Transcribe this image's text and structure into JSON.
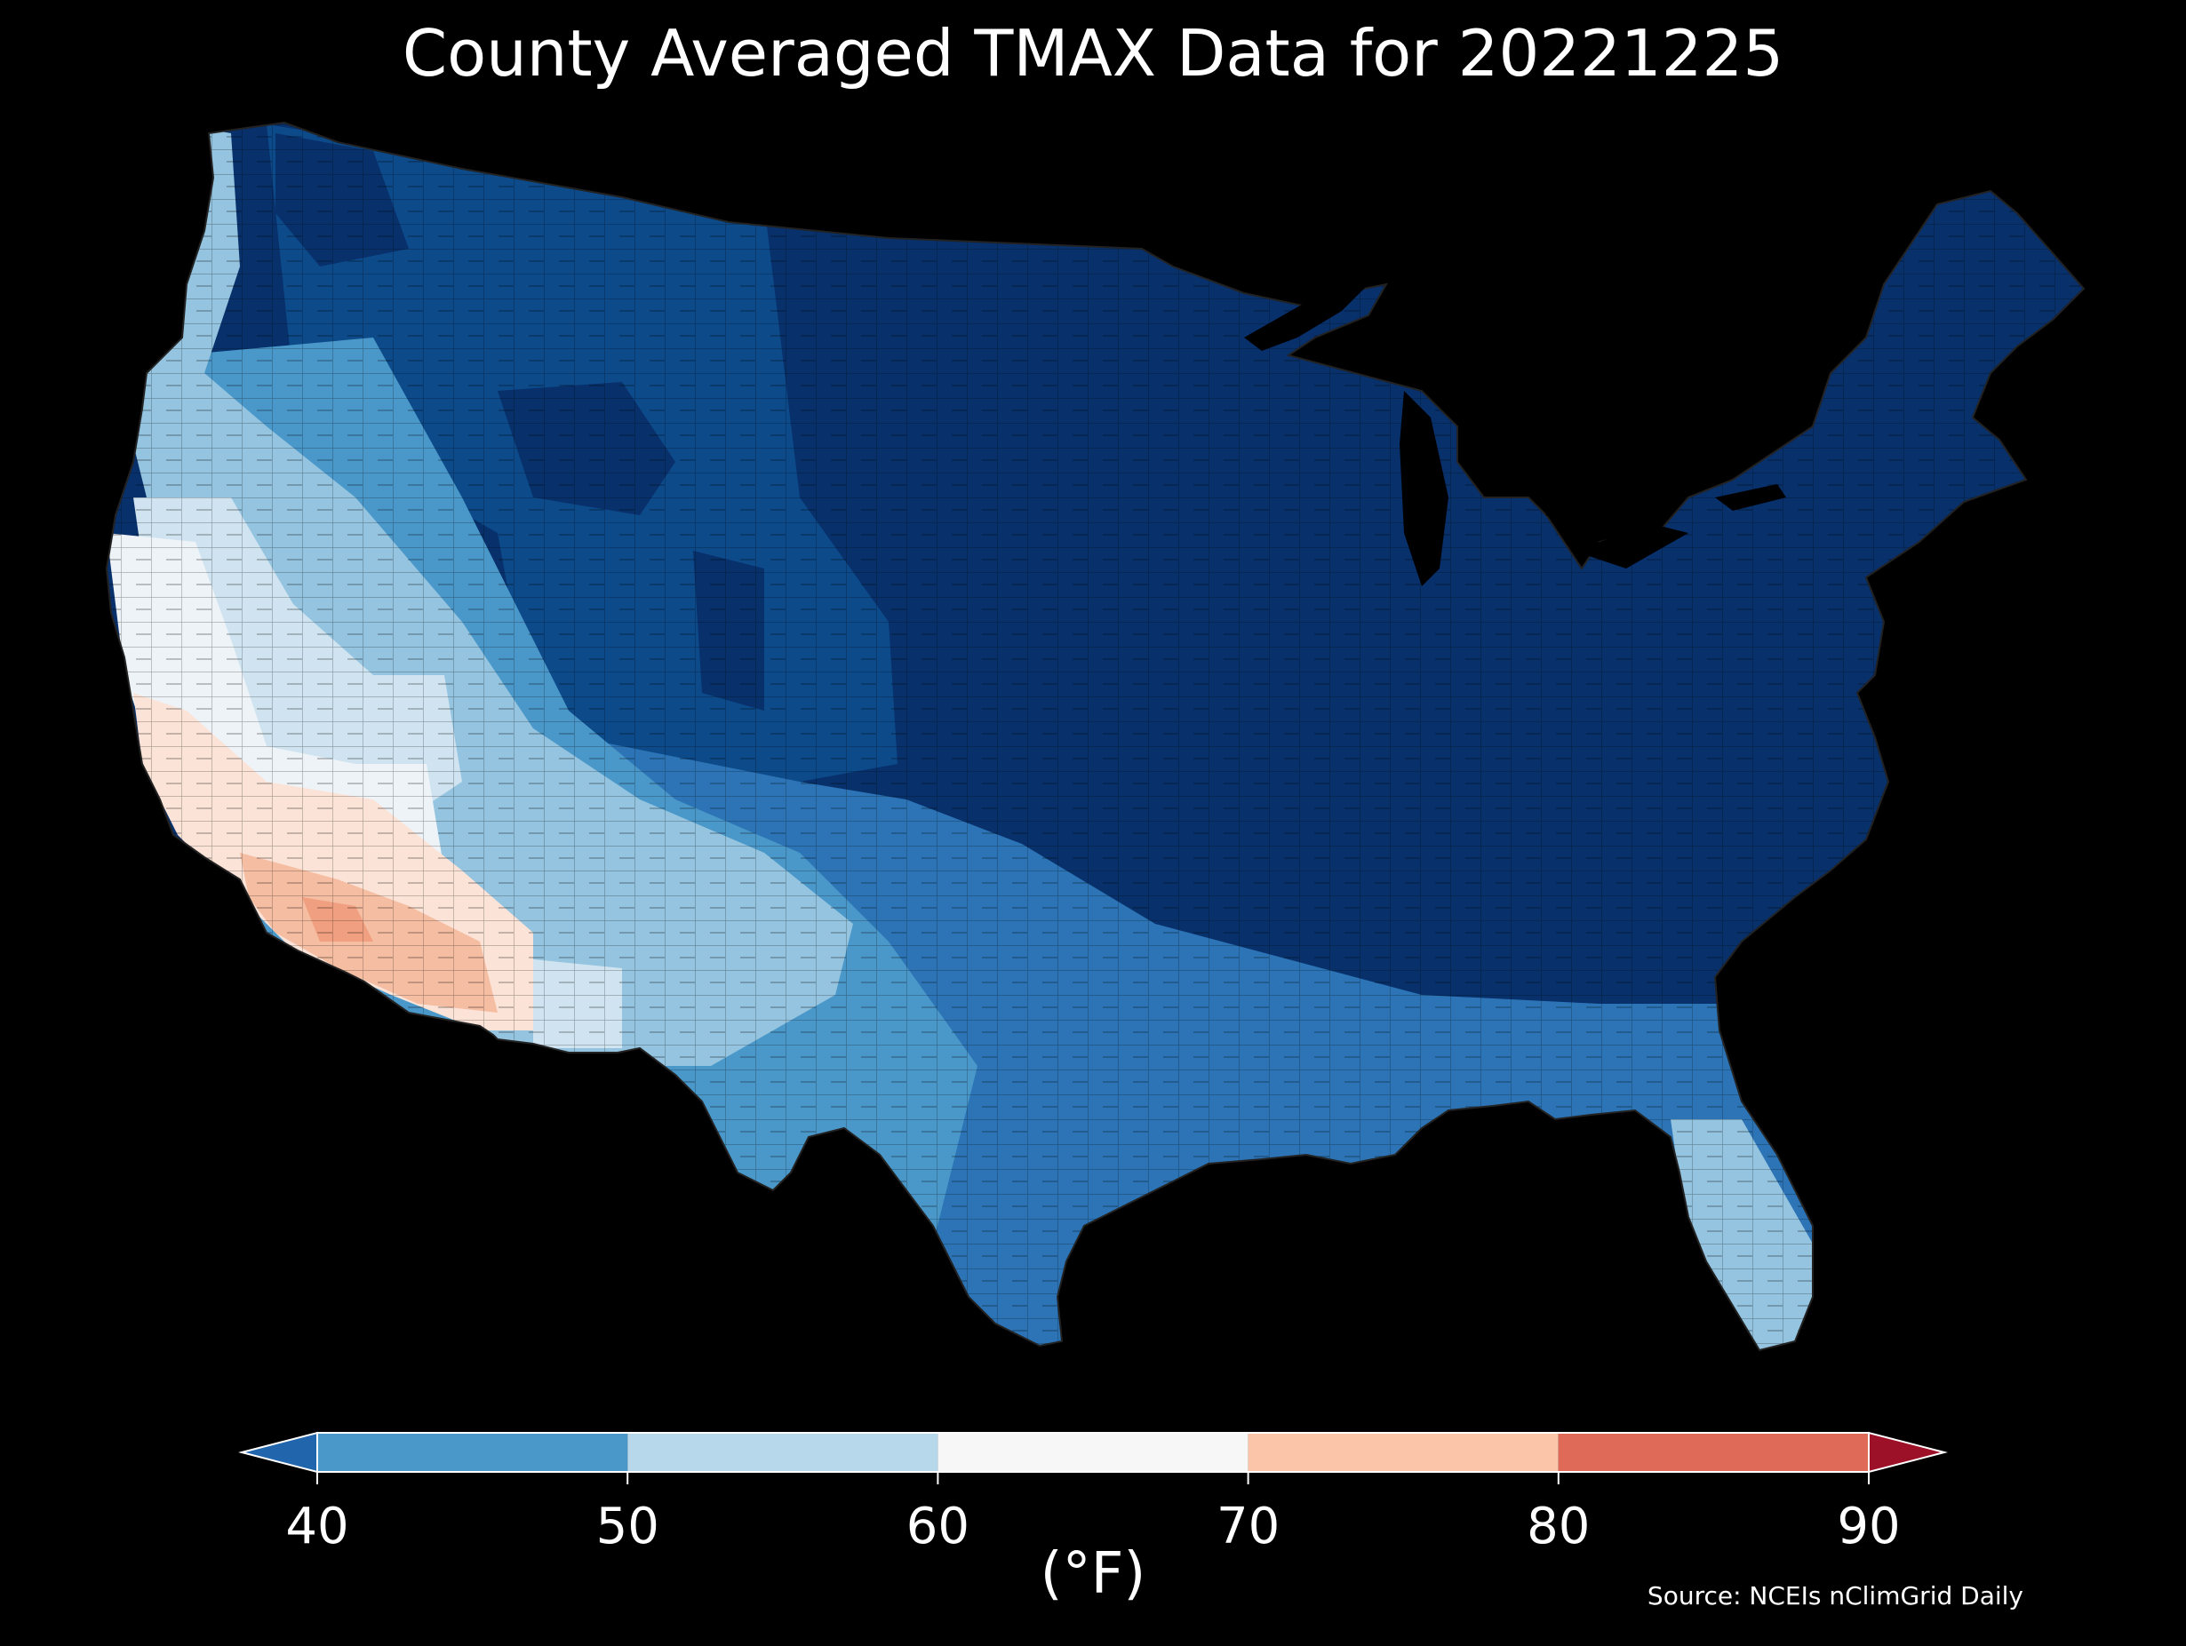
{
  "title": "County Averaged TMAX Data for 20221225",
  "colorbar": {
    "unit_label": "(°F)",
    "ticks": [
      "40",
      "50",
      "60",
      "70",
      "80",
      "90"
    ],
    "bins": [
      {
        "from": 40,
        "to": 50,
        "color": "#4a98c9"
      },
      {
        "from": 50,
        "to": 60,
        "color": "#b7d8ea"
      },
      {
        "from": 60,
        "to": 70,
        "color": "#f7f7f7"
      },
      {
        "from": 70,
        "to": 80,
        "color": "#fbc5aa"
      },
      {
        "from": 80,
        "to": 90,
        "color": "#de6a57"
      }
    ],
    "under_color": "#2166ac",
    "over_color": "#9c1127"
  },
  "map_colors": {
    "coldest": "#08306b",
    "cold": "#0d4a8a",
    "cool": "#2c74b5",
    "mild": "#4a98c9",
    "light": "#94c4df",
    "pale": "#cfe3f0",
    "neutral": "#eef3f7",
    "warm": "#fbe3d8",
    "warmer": "#f5bda1",
    "hot": "#f0a080"
  },
  "source": "Source: NCEIs nClimGrid Daily"
}
